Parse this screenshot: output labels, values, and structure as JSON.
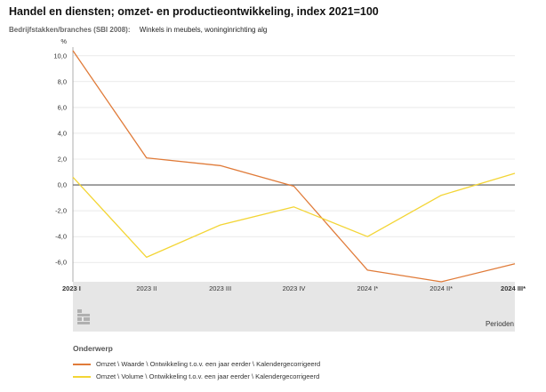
{
  "title": "Handel en diensten; omzet- en productieontwikkeling, index 2021=100",
  "filter": {
    "label": "Bedrijfstakken/branches (SBI 2008):",
    "value": "Winkels in meubels, woninginrichting alg"
  },
  "chart_data": {
    "type": "line",
    "categories": [
      "2023 I",
      "2023 II",
      "2023 III",
      "2023 IV",
      "2024 I*",
      "2024 II*",
      "2024 III*"
    ],
    "category_bold": [
      true,
      false,
      false,
      false,
      false,
      false,
      true
    ],
    "series": [
      {
        "name": "Omzet \\ Waarde \\ Ontwikkeling t.o.v. een jaar eerder \\ Kalendergecorrigeerd",
        "color": "#e07b39",
        "values": [
          10.4,
          2.1,
          1.5,
          -0.1,
          -6.6,
          -7.5,
          -6.1
        ]
      },
      {
        "name": "Omzet \\ Volume \\ Ontwikkeling t.o.v. een jaar eerder \\ Kalendergecorrigeerd",
        "color": "#f3d535",
        "values": [
          0.6,
          -5.6,
          -3.1,
          -1.7,
          -4.0,
          -0.8,
          0.9
        ]
      }
    ],
    "ylabel": "%",
    "xlabel": "Perioden",
    "yticks": [
      "10,0",
      "8,0",
      "6,0",
      "4,0",
      "2,0",
      "0,0",
      "-2,0",
      "-4,0",
      "-6,0"
    ],
    "ytick_values": [
      10,
      8,
      6,
      4,
      2,
      0,
      -2,
      -4,
      -6
    ],
    "ylim": [
      -7.5,
      10.4
    ],
    "zero_line": true,
    "grid": "horizontal"
  },
  "legend": {
    "title": "Onderwerp"
  },
  "colors": {
    "zero_line": "#777777",
    "grid": "#dddddd",
    "band": "#e6e6e6"
  },
  "icons": {
    "logo": "cbs-logo-icon"
  }
}
